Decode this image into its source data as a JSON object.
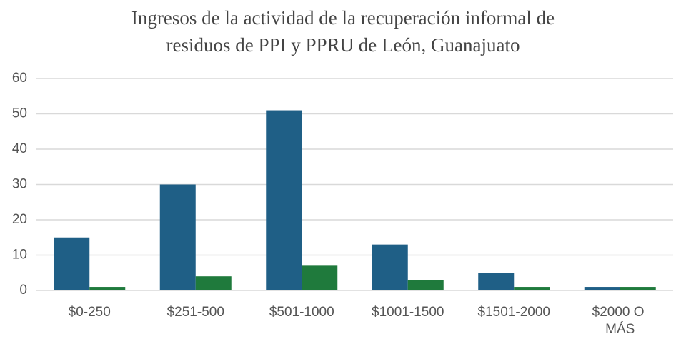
{
  "chart_data": {
    "type": "bar",
    "title": [
      "Ingresos de la actividad de la recuperación informal de",
      "residuos de PPI y PPRU de León, Guanajuato"
    ],
    "categories": [
      "$0-250",
      "$251-500",
      "$501-1000",
      "$1001-1500",
      "$1501-2000",
      "$2000 O MÁS"
    ],
    "series": [
      {
        "color": "#1f5f86",
        "values": [
          15,
          30,
          51,
          13,
          5,
          1
        ]
      },
      {
        "color": "#1f7a3c",
        "values": [
          1,
          4,
          7,
          3,
          1,
          1
        ]
      }
    ],
    "ylim": [
      0,
      60
    ],
    "yticks": [
      0,
      10,
      20,
      30,
      40,
      50,
      60
    ],
    "grid": true
  }
}
